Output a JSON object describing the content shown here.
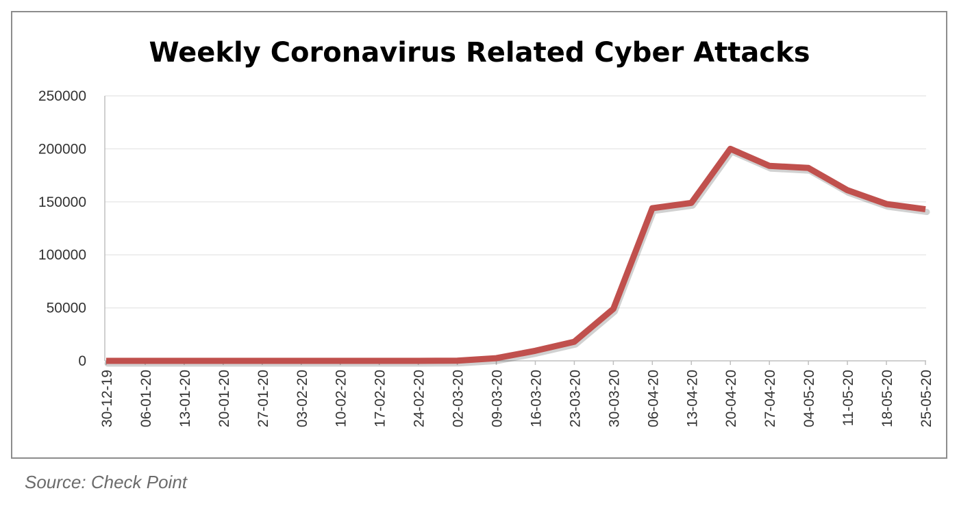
{
  "source": "Source: Check Point",
  "colors": {
    "line": "#c0504d",
    "grid": "#e9e9e9",
    "axis": "#bfbfbf",
    "frame": "#8c8c8c",
    "text": "#333333"
  },
  "chart_data": {
    "type": "line",
    "title": "Weekly Coronavirus Related Cyber Attacks",
    "xlabel": "",
    "ylabel": "",
    "ylim": [
      0,
      250000
    ],
    "y_ticks": [
      0,
      50000,
      100000,
      150000,
      200000,
      250000
    ],
    "y_tick_labels": [
      "0",
      "50000",
      "100000",
      "150000",
      "200000",
      "250000"
    ],
    "grid": true,
    "legend": "none",
    "categories": [
      "30-12-19",
      "06-01-20",
      "13-01-20",
      "20-01-20",
      "27-01-20",
      "03-02-20",
      "10-02-20",
      "17-02-20",
      "24-02-20",
      "02-03-20",
      "09-03-20",
      "16-03-20",
      "23-03-20",
      "30-03-20",
      "06-04-20",
      "13-04-20",
      "20-04-20",
      "27-04-20",
      "04-05-20",
      "11-05-20",
      "18-05-20",
      "25-05-20"
    ],
    "series": [
      {
        "values": [
          0,
          0,
          0,
          0,
          0,
          0,
          0,
          0,
          0,
          200,
          2500,
          9500,
          18000,
          49000,
          144000,
          149000,
          200000,
          184000,
          182000,
          161000,
          148000,
          143000
        ]
      }
    ]
  }
}
